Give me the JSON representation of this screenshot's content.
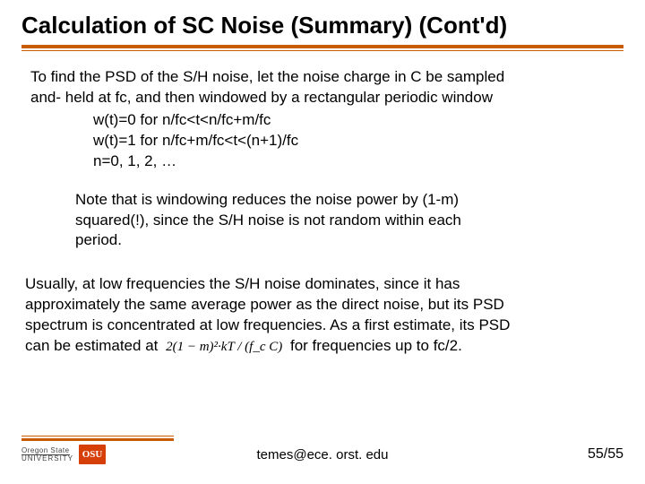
{
  "title": "Calculation of SC Noise (Summary) (Cont'd)",
  "rule": {
    "thick_color": "#c85a00",
    "thin_color": "#c85a00"
  },
  "body": {
    "p1_l1": "To find the PSD of the S/H noise, let the noise charge in C be sampled",
    "p1_l2": "and- held at fc, and then windowed by a rectangular periodic window",
    "w1": "w(t)=0 for n/fc<t<n/fc+m/fc",
    "w2": "w(t)=1 for n/fc+m/fc<t<(n+1)/fc",
    "w3": "n=0, 1, 2, …",
    "p2_l1": "Note that is windowing reduces the noise power by (1-m)",
    "p2_l2": "squared(!), since the S/H noise is not random within each",
    "p2_l3": "period.",
    "p3_l1": "Usually, at low frequencies the S/H noise dominates, since it has",
    "p3_l2": "approximately the same average power as the direct noise, but its PSD",
    "p3_l3": "spectrum is concentrated at low frequencies. As a first estimate, its PSD",
    "p3_l4a": "can be estimated at ",
    "formula": "2(1 − m)²·kT / (f_c C)",
    "p3_l4b": " for frequencies up to fc/2."
  },
  "footer": {
    "org_line1": "Oregon State",
    "org_line2": "UNIVERSITY",
    "badge": "OSU",
    "email": "temes@ece. orst. edu",
    "page": "55/55"
  }
}
